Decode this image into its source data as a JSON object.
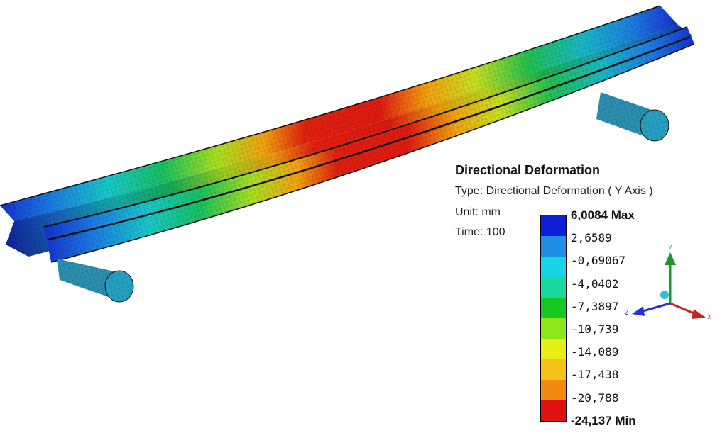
{
  "legend": {
    "title": "Directional Deformation",
    "type_line": "Type: Directional Deformation ( Y Axis )",
    "unit_line": "Unit: mm",
    "time_line": "Time: 100",
    "band_colors": [
      "#0a1fd6",
      "#1f8fe6",
      "#16d6e6",
      "#1ad9a0",
      "#17c81e",
      "#8de61a",
      "#e6ee18",
      "#f6c21a",
      "#f28a10",
      "#e01212"
    ],
    "levels": [
      {
        "text": "6,0084 Max",
        "strong": true
      },
      {
        "text": "2,6589",
        "strong": false
      },
      {
        "text": "-0,69067",
        "strong": false
      },
      {
        "text": "-4,0402",
        "strong": false
      },
      {
        "text": "-7,3897",
        "strong": false
      },
      {
        "text": "-10,739",
        "strong": false
      },
      {
        "text": "-14,089",
        "strong": false
      },
      {
        "text": "-17,438",
        "strong": false
      },
      {
        "text": "-20,788",
        "strong": false
      },
      {
        "text": "-24,137 Min",
        "strong": true
      }
    ]
  },
  "triad": {
    "y_label": "Y",
    "z_label": "Z",
    "x_label": "X",
    "y_color": "#1a9a2a",
    "z_color": "#2233dd",
    "x_color": "#cc2222"
  }
}
